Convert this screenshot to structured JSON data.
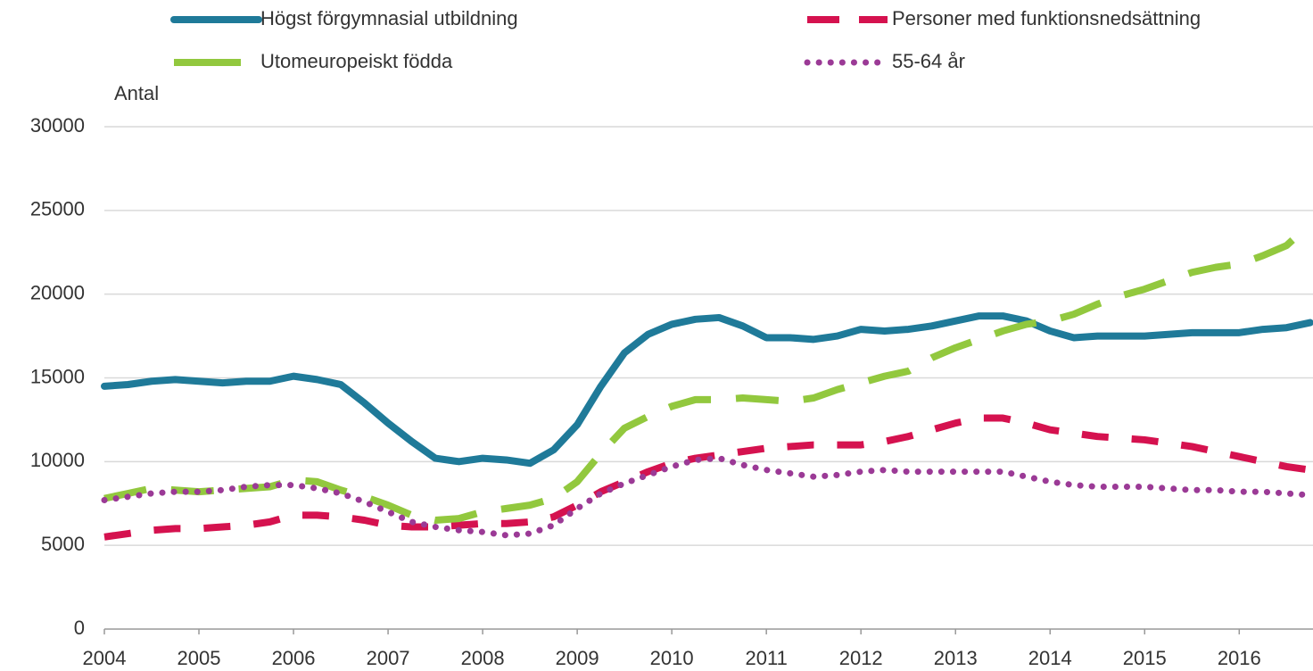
{
  "chart_data": {
    "type": "line",
    "y_label": "Antal",
    "x": [
      2004,
      2004.25,
      2004.5,
      2004.75,
      2005,
      2005.25,
      2005.5,
      2005.75,
      2006,
      2006.25,
      2006.5,
      2006.75,
      2007,
      2007.25,
      2007.5,
      2007.75,
      2008,
      2008.25,
      2008.5,
      2008.75,
      2009,
      2009.25,
      2009.5,
      2009.75,
      2010,
      2010.25,
      2010.5,
      2010.75,
      2011,
      2011.25,
      2011.5,
      2011.75,
      2012,
      2012.25,
      2012.5,
      2012.75,
      2013,
      2013.25,
      2013.5,
      2013.75,
      2014,
      2014.25,
      2014.5,
      2014.75,
      2015,
      2015.25,
      2015.5,
      2015.75,
      2016,
      2016.25,
      2016.5,
      2016.75
    ],
    "series": [
      {
        "name": "Högst förgymnasial utbildning",
        "color": "#1f7a99",
        "style": "solid",
        "values": [
          14500,
          14600,
          14800,
          14900,
          14800,
          14700,
          14800,
          14800,
          15100,
          14900,
          14600,
          13500,
          12300,
          11200,
          10200,
          10000,
          10200,
          10100,
          9900,
          10700,
          12200,
          14500,
          16500,
          17600,
          18200,
          18500,
          18600,
          18100,
          17400,
          17400,
          17300,
          17500,
          17900,
          17800,
          17900,
          18100,
          18400,
          18700,
          18700,
          18400,
          17800,
          17400,
          17500,
          17500,
          17500,
          17600,
          17700,
          17700,
          17700,
          17900,
          18000,
          18300
        ]
      },
      {
        "name": "Personer med funktionsnedsättning",
        "color": "#d5124f",
        "style": "dashed",
        "values": [
          5500,
          5700,
          5900,
          6000,
          6000,
          6100,
          6200,
          6400,
          6800,
          6800,
          6700,
          6500,
          6200,
          6100,
          6100,
          6200,
          6300,
          6300,
          6400,
          6700,
          7400,
          8200,
          8800,
          9400,
          9900,
          10200,
          10400,
          10600,
          10800,
          10900,
          11000,
          11000,
          11000,
          11200,
          11500,
          11900,
          12300,
          12600,
          12600,
          12300,
          11900,
          11700,
          11500,
          11400,
          11300,
          11100,
          10900,
          10600,
          10300,
          10000,
          9700,
          9500
        ]
      },
      {
        "name": "Utomeuropeiskt födda",
        "color": "#92c83e",
        "style": "longdash",
        "values": [
          7800,
          8100,
          8400,
          8300,
          8200,
          8300,
          8400,
          8500,
          8900,
          8800,
          8300,
          7900,
          7400,
          6800,
          6500,
          6600,
          7000,
          7200,
          7400,
          7800,
          8800,
          10500,
          12000,
          12700,
          13300,
          13700,
          13700,
          13800,
          13700,
          13600,
          13800,
          14300,
          14700,
          15100,
          15400,
          16200,
          16800,
          17300,
          17800,
          18200,
          18400,
          18800,
          19400,
          19900,
          20300,
          20800,
          21300,
          21600,
          21800,
          22300,
          22900,
          24200
        ]
      },
      {
        "name": "55-64 år",
        "color": "#9b3a96",
        "style": "dotted",
        "values": [
          7700,
          7900,
          8100,
          8200,
          8200,
          8300,
          8500,
          8600,
          8600,
          8400,
          8100,
          7600,
          7000,
          6400,
          6100,
          5900,
          5800,
          5600,
          5700,
          6200,
          7200,
          8100,
          8700,
          9200,
          9700,
          10100,
          10200,
          9800,
          9500,
          9300,
          9100,
          9200,
          9400,
          9500,
          9400,
          9400,
          9400,
          9400,
          9400,
          9100,
          8800,
          8600,
          8500,
          8500,
          8500,
          8400,
          8300,
          8300,
          8200,
          8200,
          8100,
          8000
        ]
      }
    ],
    "xlim": [
      2004,
      2016.78
    ],
    "xticks": [
      2004,
      2005,
      2006,
      2007,
      2008,
      2009,
      2010,
      2011,
      2012,
      2013,
      2014,
      2015,
      2016
    ],
    "ylim": [
      0,
      30000
    ],
    "yticks": [
      0,
      5000,
      10000,
      15000,
      20000,
      25000,
      30000
    ],
    "grid": true,
    "legend": "top"
  }
}
